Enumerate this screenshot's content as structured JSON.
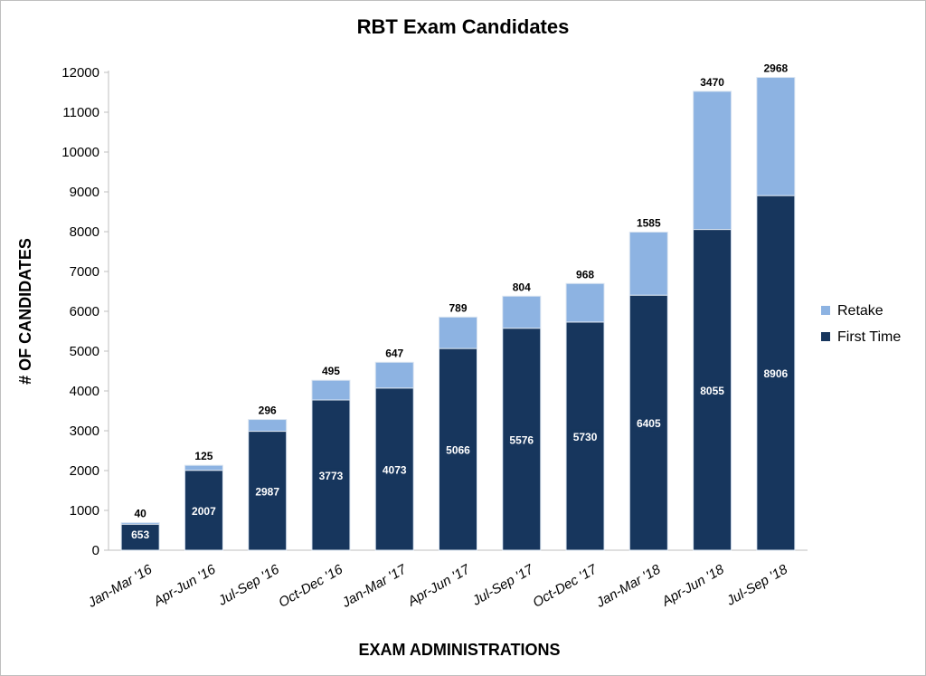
{
  "chart_data": {
    "type": "bar",
    "stacked": true,
    "title": "RBT Exam Candidates",
    "xlabel": "EXAM ADMINISTRATIONS",
    "ylabel": "# OF CANDIDATES",
    "ylim": [
      0,
      12000
    ],
    "yticks": [
      0,
      1000,
      2000,
      3000,
      4000,
      5000,
      6000,
      7000,
      8000,
      9000,
      10000,
      11000,
      12000
    ],
    "categories": [
      "Jan-Mar '16",
      "Apr-Jun '16",
      "Jul-Sep '16",
      "Oct-Dec '16",
      "Jan-Mar '17",
      "Apr-Jun '17",
      "Jul-Sep '17",
      "Oct-Dec '17",
      "Jan-Mar '18",
      "Apr-Jun '18",
      "Jul-Sep '18"
    ],
    "series": [
      {
        "name": "First Time",
        "color": "#17365d",
        "values": [
          653,
          2007,
          2987,
          3773,
          4073,
          5066,
          5576,
          5730,
          6405,
          8055,
          8906
        ]
      },
      {
        "name": "Retake",
        "color": "#8db3e2",
        "values": [
          40,
          125,
          296,
          495,
          647,
          789,
          804,
          968,
          1585,
          3470,
          2968
        ]
      }
    ],
    "legend": [
      "Retake",
      "First Time"
    ],
    "legend_position": "right",
    "grid": false
  }
}
